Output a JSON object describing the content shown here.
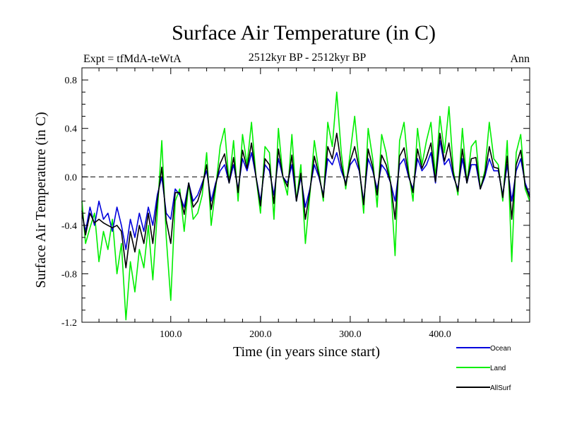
{
  "chart_data": {
    "type": "line",
    "title": "Surface Air Temperature (in C)",
    "subtitle": "2512kyr BP - 2512kyr BP",
    "left_label": "Expt = tfMdA-teWtA",
    "right_label": "Ann",
    "xlabel": "Time (in years since start)",
    "ylabel": "Surface Air Temperature (in C)",
    "xlim": [
      1,
      500
    ],
    "ylim": [
      -1.2,
      0.9
    ],
    "x_ticks": [
      100,
      200,
      300,
      400
    ],
    "x_tick_labels": [
      "100.0",
      "200.0",
      "300.0",
      "400.0"
    ],
    "y_ticks": [
      -1.2,
      -0.8,
      -0.4,
      0.0,
      0.4,
      0.8
    ],
    "y_tick_labels": [
      "-1.2",
      "-0.8",
      "-0.4",
      "0.0",
      "0.4",
      "0.8"
    ],
    "zero_line": "dashed",
    "legend_position": "bottom-right",
    "series": [
      {
        "name": "Land",
        "color": "#00ee00",
        "x": [
          1,
          5,
          10,
          15,
          20,
          25,
          30,
          35,
          40,
          45,
          50,
          55,
          60,
          65,
          70,
          75,
          80,
          85,
          90,
          95,
          100,
          105,
          110,
          115,
          120,
          125,
          130,
          135,
          140,
          145,
          150,
          155,
          160,
          165,
          170,
          175,
          180,
          185,
          190,
          195,
          200,
          205,
          210,
          215,
          220,
          225,
          230,
          235,
          240,
          245,
          250,
          255,
          260,
          265,
          270,
          275,
          280,
          285,
          290,
          295,
          300,
          305,
          310,
          315,
          320,
          325,
          330,
          335,
          340,
          345,
          350,
          355,
          360,
          365,
          370,
          375,
          380,
          385,
          390,
          395,
          400,
          405,
          410,
          415,
          420,
          425,
          430,
          435,
          440,
          445,
          450,
          455,
          460,
          465,
          470,
          475,
          480,
          485,
          490,
          495,
          500
        ],
        "values": [
          -0.2,
          -0.55,
          -0.42,
          -0.3,
          -0.7,
          -0.45,
          -0.6,
          -0.35,
          -0.8,
          -0.55,
          -1.18,
          -0.7,
          -0.95,
          -0.6,
          -0.75,
          -0.4,
          -0.85,
          -0.3,
          0.3,
          -0.5,
          -1.02,
          -0.2,
          -0.1,
          -0.45,
          -0.05,
          -0.35,
          -0.3,
          -0.15,
          0.2,
          -0.4,
          -0.1,
          0.25,
          0.4,
          -0.05,
          0.3,
          -0.2,
          0.35,
          0.1,
          0.45,
          0.0,
          -0.3,
          0.25,
          0.2,
          -0.35,
          0.4,
          0.0,
          -0.15,
          0.35,
          -0.2,
          0.1,
          -0.55,
          -0.15,
          0.3,
          0.05,
          -0.2,
          0.45,
          0.25,
          0.7,
          0.2,
          -0.1,
          0.2,
          0.5,
          0.1,
          -0.3,
          0.4,
          0.15,
          -0.25,
          0.35,
          0.2,
          -0.05,
          -0.65,
          0.3,
          0.45,
          0.05,
          -0.2,
          0.4,
          0.1,
          0.3,
          0.45,
          0.0,
          0.5,
          0.2,
          0.58,
          0.05,
          -0.15,
          0.4,
          -0.05,
          0.25,
          0.3,
          -0.1,
          0.05,
          0.45,
          0.15,
          0.1,
          -0.2,
          0.3,
          -0.7,
          0.2,
          0.35,
          -0.1,
          -0.2
        ]
      },
      {
        "name": "Ocean",
        "color": "#0000dd",
        "x": [
          1,
          5,
          10,
          15,
          20,
          25,
          30,
          35,
          40,
          45,
          50,
          55,
          60,
          65,
          70,
          75,
          80,
          85,
          90,
          95,
          100,
          105,
          110,
          115,
          120,
          125,
          130,
          135,
          140,
          145,
          150,
          155,
          160,
          165,
          170,
          175,
          180,
          185,
          190,
          195,
          200,
          205,
          210,
          215,
          220,
          225,
          230,
          235,
          240,
          245,
          250,
          255,
          260,
          265,
          270,
          275,
          280,
          285,
          290,
          295,
          300,
          305,
          310,
          315,
          320,
          325,
          330,
          335,
          340,
          345,
          350,
          355,
          360,
          365,
          370,
          375,
          380,
          385,
          390,
          395,
          400,
          405,
          410,
          415,
          420,
          425,
          430,
          435,
          440,
          445,
          450,
          455,
          460,
          465,
          470,
          475,
          480,
          485,
          490,
          495,
          500
        ],
        "values": [
          -0.3,
          -0.45,
          -0.25,
          -0.4,
          -0.2,
          -0.35,
          -0.3,
          -0.45,
          -0.25,
          -0.4,
          -0.6,
          -0.35,
          -0.5,
          -0.3,
          -0.45,
          -0.25,
          -0.4,
          -0.15,
          0.0,
          -0.3,
          -0.35,
          -0.1,
          -0.15,
          -0.25,
          -0.05,
          -0.2,
          -0.15,
          -0.05,
          0.05,
          -0.2,
          -0.05,
          0.05,
          0.1,
          -0.05,
          0.1,
          -0.1,
          0.15,
          0.05,
          0.2,
          0.0,
          -0.2,
          0.1,
          0.05,
          -0.15,
          0.15,
          0.0,
          -0.05,
          0.1,
          -0.2,
          0.0,
          -0.25,
          -0.1,
          0.1,
          0.0,
          -0.15,
          0.15,
          0.1,
          0.2,
          0.05,
          -0.05,
          0.1,
          0.15,
          0.05,
          -0.2,
          0.15,
          0.05,
          -0.1,
          0.1,
          0.05,
          -0.05,
          -0.2,
          0.1,
          0.15,
          0.0,
          -0.1,
          0.15,
          0.05,
          0.1,
          0.2,
          -0.05,
          0.3,
          0.1,
          0.15,
          0.0,
          -0.1,
          0.15,
          -0.05,
          0.1,
          0.1,
          -0.1,
          0.0,
          0.15,
          0.05,
          0.05,
          -0.15,
          0.1,
          -0.2,
          0.05,
          0.15,
          -0.05,
          -0.15
        ]
      },
      {
        "name": "AllSurf",
        "color": "#000000",
        "x": [
          1,
          5,
          10,
          15,
          20,
          25,
          30,
          35,
          40,
          45,
          50,
          55,
          60,
          65,
          70,
          75,
          80,
          85,
          90,
          95,
          100,
          105,
          110,
          115,
          120,
          125,
          130,
          135,
          140,
          145,
          150,
          155,
          160,
          165,
          170,
          175,
          180,
          185,
          190,
          195,
          200,
          205,
          210,
          215,
          220,
          225,
          230,
          235,
          240,
          245,
          250,
          255,
          260,
          265,
          270,
          275,
          280,
          285,
          290,
          295,
          300,
          305,
          310,
          315,
          320,
          325,
          330,
          335,
          340,
          345,
          350,
          355,
          360,
          365,
          370,
          375,
          380,
          385,
          390,
          395,
          400,
          405,
          410,
          415,
          420,
          425,
          430,
          435,
          440,
          445,
          450,
          455,
          460,
          465,
          470,
          475,
          480,
          485,
          490,
          495,
          500
        ],
        "values": [
          -0.28,
          -0.48,
          -0.3,
          -0.38,
          -0.35,
          -0.38,
          -0.4,
          -0.42,
          -0.4,
          -0.45,
          -0.75,
          -0.45,
          -0.62,
          -0.4,
          -0.55,
          -0.3,
          -0.55,
          -0.2,
          0.08,
          -0.36,
          -0.55,
          -0.13,
          -0.13,
          -0.31,
          -0.05,
          -0.25,
          -0.2,
          -0.08,
          0.1,
          -0.27,
          -0.07,
          0.11,
          0.19,
          -0.05,
          0.16,
          -0.13,
          0.22,
          0.07,
          0.28,
          0.0,
          -0.24,
          0.15,
          0.1,
          -0.22,
          0.23,
          0.0,
          -0.08,
          0.18,
          -0.2,
          0.03,
          -0.35,
          -0.12,
          0.17,
          0.02,
          -0.17,
          0.25,
          0.15,
          0.36,
          0.1,
          -0.07,
          0.13,
          0.25,
          0.07,
          -0.23,
          0.23,
          0.08,
          -0.15,
          0.18,
          0.1,
          -0.05,
          -0.35,
          0.17,
          0.24,
          0.02,
          -0.13,
          0.23,
          0.07,
          0.16,
          0.28,
          -0.04,
          0.36,
          0.13,
          0.28,
          0.02,
          -0.12,
          0.23,
          -0.05,
          0.15,
          0.16,
          -0.1,
          0.02,
          0.25,
          0.08,
          0.07,
          -0.17,
          0.17,
          -0.35,
          0.1,
          0.22,
          -0.07,
          -0.17
        ]
      }
    ]
  }
}
